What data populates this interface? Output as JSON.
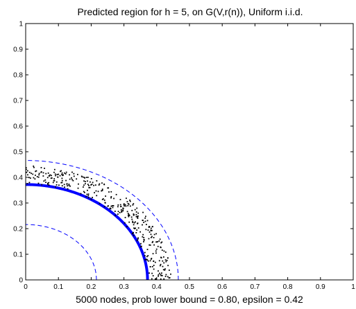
{
  "chart_data": {
    "type": "scatter",
    "title": "Predicted region for h = 5, on G(V,r(n)), Uniform i.i.d.",
    "xlabel": "5000 nodes, prob lower bound = 0.80, epsilon = 0.42",
    "ylabel": "",
    "xlim": [
      0,
      1
    ],
    "ylim": [
      0,
      1
    ],
    "xticks": [
      "0",
      "0.1",
      "0.2",
      "0.3",
      "0.4",
      "0.5",
      "0.6",
      "0.7",
      "0.8",
      "0.9",
      "1"
    ],
    "yticks": [
      "0",
      "0.1",
      "0.2",
      "0.3",
      "0.4",
      "0.5",
      "0.6",
      "0.7",
      "0.8",
      "0.9",
      "1"
    ],
    "grid": false,
    "legend": "none",
    "curves": [
      {
        "kind": "quarter-circle",
        "radius": 0.372,
        "style": "solid",
        "color": "#0000ff",
        "weight": "thick"
      },
      {
        "kind": "quarter-circle",
        "radius": 0.216,
        "style": "dashed",
        "color": "#0000ff",
        "weight": "thin"
      },
      {
        "kind": "quarter-circle",
        "radius": 0.466,
        "style": "dashed",
        "color": "#0000ff",
        "weight": "thin"
      }
    ],
    "points": {
      "count_drawn": 380,
      "radius_range": [
        0.372,
        0.445
      ],
      "color": "#000000",
      "region": "annulus between the thick solid arc and the outer dashed arc, first quadrant"
    }
  }
}
